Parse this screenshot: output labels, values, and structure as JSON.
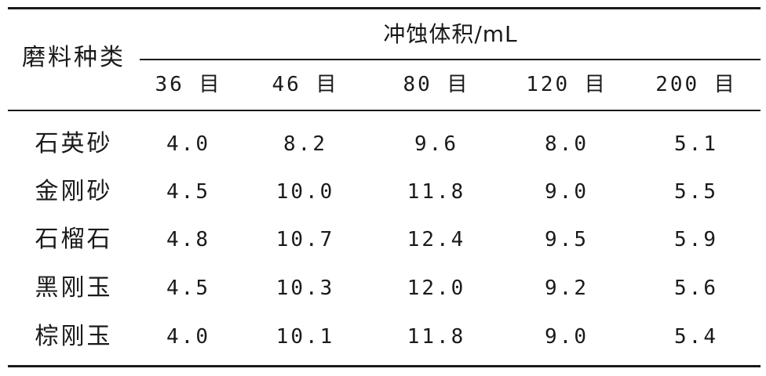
{
  "table": {
    "row_header_label": "磨料种类",
    "group_header": "冲蚀体积/mL",
    "columns": [
      "36 目",
      "46 目",
      "80 目",
      "120 目",
      "200 目"
    ],
    "rows": [
      {
        "name": "石英砂",
        "values": [
          "4.0",
          "8.2",
          "9.6",
          "8.0",
          "5.1"
        ]
      },
      {
        "name": "金刚砂",
        "values": [
          "4.5",
          "10.0",
          "11.8",
          "9.0",
          "5.5"
        ]
      },
      {
        "name": "石榴石",
        "values": [
          "4.8",
          "10.7",
          "12.4",
          "9.5",
          "5.9"
        ]
      },
      {
        "name": "黑刚玉",
        "values": [
          "4.5",
          "10.3",
          "12.0",
          "9.2",
          "5.6"
        ]
      },
      {
        "name": "棕刚玉",
        "values": [
          "4.0",
          "10.1",
          "11.8",
          "9.0",
          "5.4"
        ]
      }
    ]
  }
}
